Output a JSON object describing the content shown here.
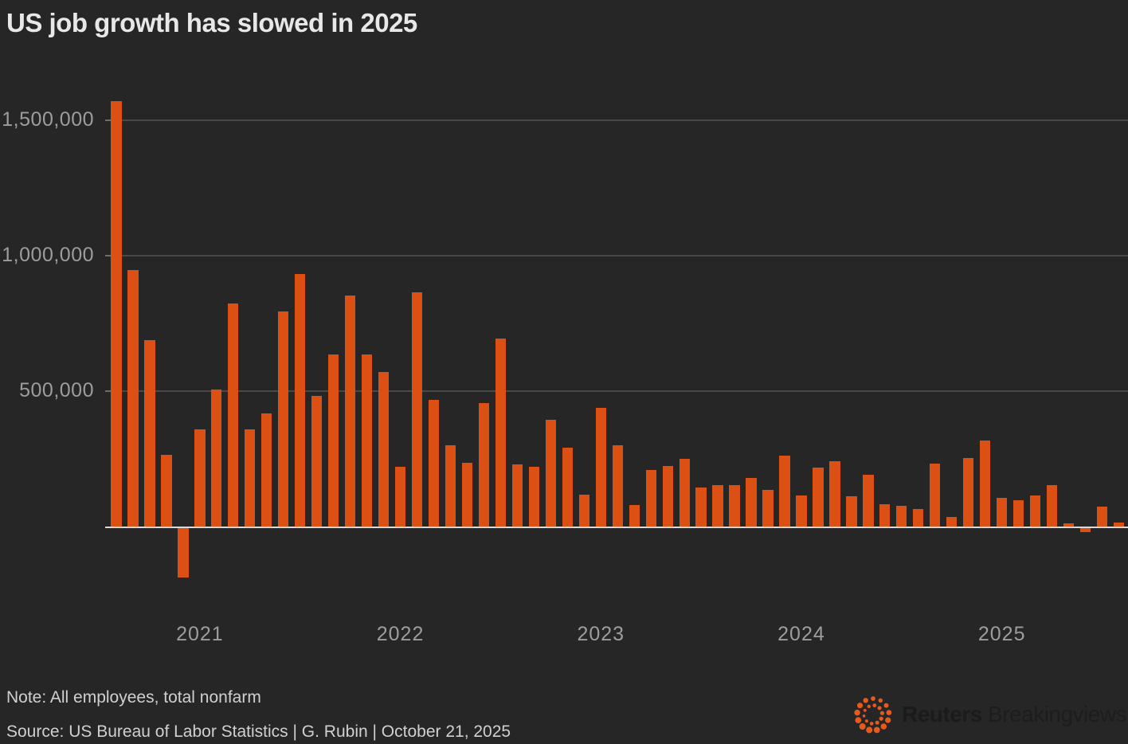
{
  "title": "US job growth has slowed in 2025",
  "note": "Note: All employees, total nonfarm",
  "source": "Source: US Bureau of Labor Statistics | G. Rubin | October 21, 2025",
  "branding": {
    "logo_icon": "reuters-dotted-spiral",
    "name_primary": "Reuters",
    "name_secondary": "Breakingviews"
  },
  "colors": {
    "background": "#262626",
    "bar": "#dc5013",
    "gridline": "#484848",
    "baseline": "#dadada",
    "axis_label": "#9d9d9d",
    "title": "#e8e8e8",
    "caption": "#d0d0d0",
    "logo_dots": "#e85a1c",
    "logo_text": "#1b1b1b"
  },
  "chart_data": {
    "type": "bar",
    "title": "US job growth has slowed in 2025",
    "xlabel": "",
    "ylabel": "",
    "grid": true,
    "legend": "none",
    "ylim": [
      -320000,
      1950000
    ],
    "y_tick_values": [
      1500000,
      1000000,
      500000
    ],
    "y_tick_labels": [
      "1,500,000",
      "1,000,000",
      "500,000"
    ],
    "x_tick_labels": [
      "2021",
      "2022",
      "2023",
      "2024",
      "2025"
    ],
    "x": [
      "2020-08",
      "2020-09",
      "2020-10",
      "2020-11",
      "2020-12",
      "2021-01",
      "2021-02",
      "2021-03",
      "2021-04",
      "2021-05",
      "2021-06",
      "2021-07",
      "2021-08",
      "2021-09",
      "2021-10",
      "2021-11",
      "2021-12",
      "2022-01",
      "2022-02",
      "2022-03",
      "2022-04",
      "2022-05",
      "2022-06",
      "2022-07",
      "2022-08",
      "2022-09",
      "2022-10",
      "2022-11",
      "2022-12",
      "2023-01",
      "2023-02",
      "2023-03",
      "2023-04",
      "2023-05",
      "2023-06",
      "2023-07",
      "2023-08",
      "2023-09",
      "2023-10",
      "2023-11",
      "2023-12",
      "2024-01",
      "2024-02",
      "2024-03",
      "2024-04",
      "2024-05",
      "2024-06",
      "2024-07",
      "2024-08",
      "2024-09",
      "2024-10",
      "2024-11",
      "2024-12",
      "2025-01",
      "2025-02",
      "2025-03",
      "2025-04",
      "2025-05",
      "2025-06",
      "2025-07",
      "2025-08"
    ],
    "values": [
      1570000,
      947000,
      688000,
      267000,
      -186000,
      361000,
      507000,
      823000,
      361000,
      417000,
      794000,
      933000,
      482000,
      636000,
      854000,
      635000,
      570000,
      221000,
      866000,
      469000,
      301000,
      237000,
      456000,
      693000,
      230000,
      223000,
      394000,
      291000,
      118000,
      440000,
      301000,
      80000,
      209000,
      224000,
      251000,
      145000,
      154000,
      153000,
      182000,
      137000,
      262000,
      115000,
      219000,
      241000,
      113000,
      192000,
      83000,
      79000,
      65000,
      234000,
      38000,
      255000,
      319000,
      107000,
      97000,
      115000,
      153000,
      14000,
      -19000,
      74000,
      16000
    ]
  }
}
